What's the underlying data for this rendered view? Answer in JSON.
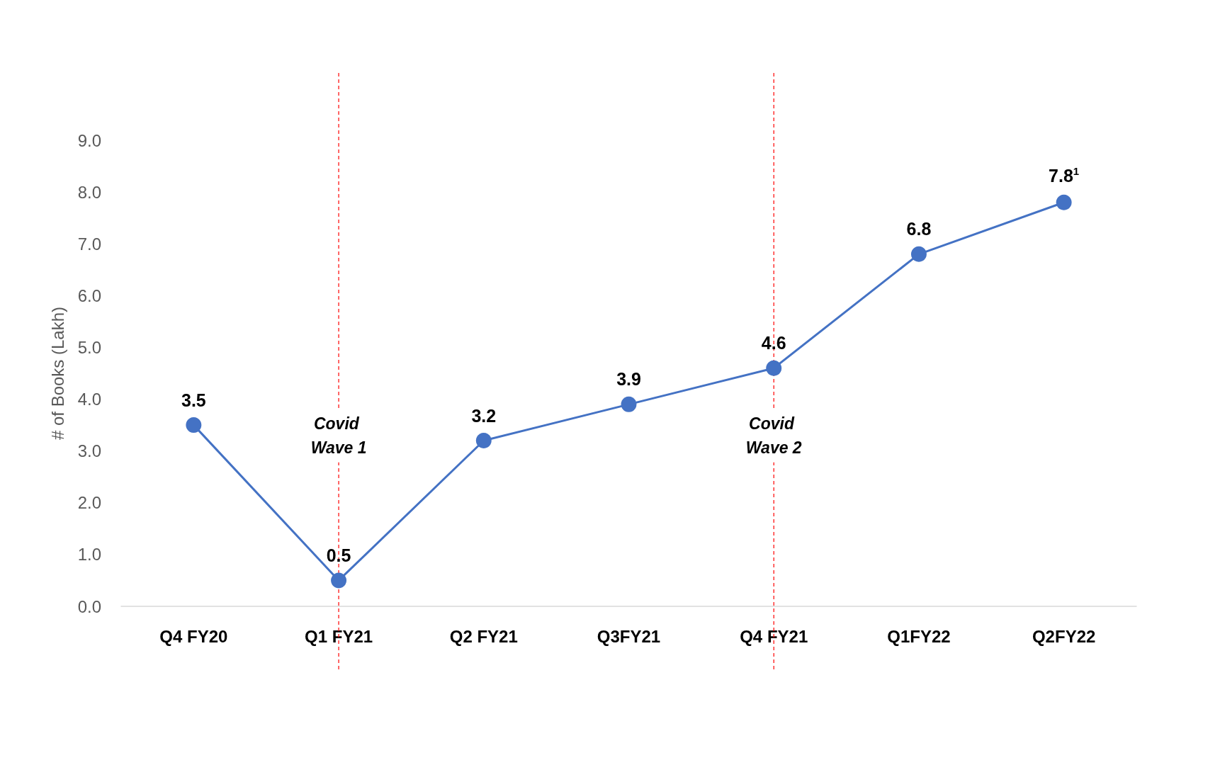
{
  "chart_data": {
    "type": "line",
    "ylabel": "# of Books (Lakh)",
    "categories": [
      "Q4 FY20",
      "Q1 FY21",
      "Q2 FY21",
      "Q3FY21",
      "Q4 FY21",
      "Q1FY22",
      "Q2FY22"
    ],
    "series": [
      {
        "color": "#4472c4",
        "values": [
          3.5,
          0.5,
          3.2,
          3.9,
          4.6,
          6.8,
          7.8
        ],
        "value_labels": [
          "3.5",
          "0.5",
          "3.2",
          "3.9",
          "4.6",
          "6.8",
          "7.8$^{1}$"
        ]
      }
    ],
    "ylim": [
      0,
      9
    ],
    "yticks": [
      {
        "value": 0,
        "label": "0.0"
      },
      {
        "value": 1,
        "label": "1.0"
      },
      {
        "value": 2,
        "label": "2.0"
      },
      {
        "value": 3,
        "label": "3.0"
      },
      {
        "value": 4,
        "label": "4.0"
      },
      {
        "value": 5,
        "label": "5.0"
      },
      {
        "value": 6,
        "label": "6.0"
      },
      {
        "value": 7,
        "label": "7.0"
      },
      {
        "value": 8,
        "label": "8.0"
      },
      {
        "value": 9,
        "label": "9.0"
      }
    ],
    "ref_lines": [
      {
        "axis": "x",
        "value": "Q1 FY21",
        "label": "Covid Wave 1",
        "color": "#ff0000",
        "line_style": "dashed"
      },
      {
        "axis": "x",
        "value": "Q4 FY21",
        "label": "Covid Wave 2",
        "color": "#ff0000",
        "line_style": "dashed"
      }
    ],
    "grid": false,
    "marker": "circle",
    "line_style": "solid"
  }
}
